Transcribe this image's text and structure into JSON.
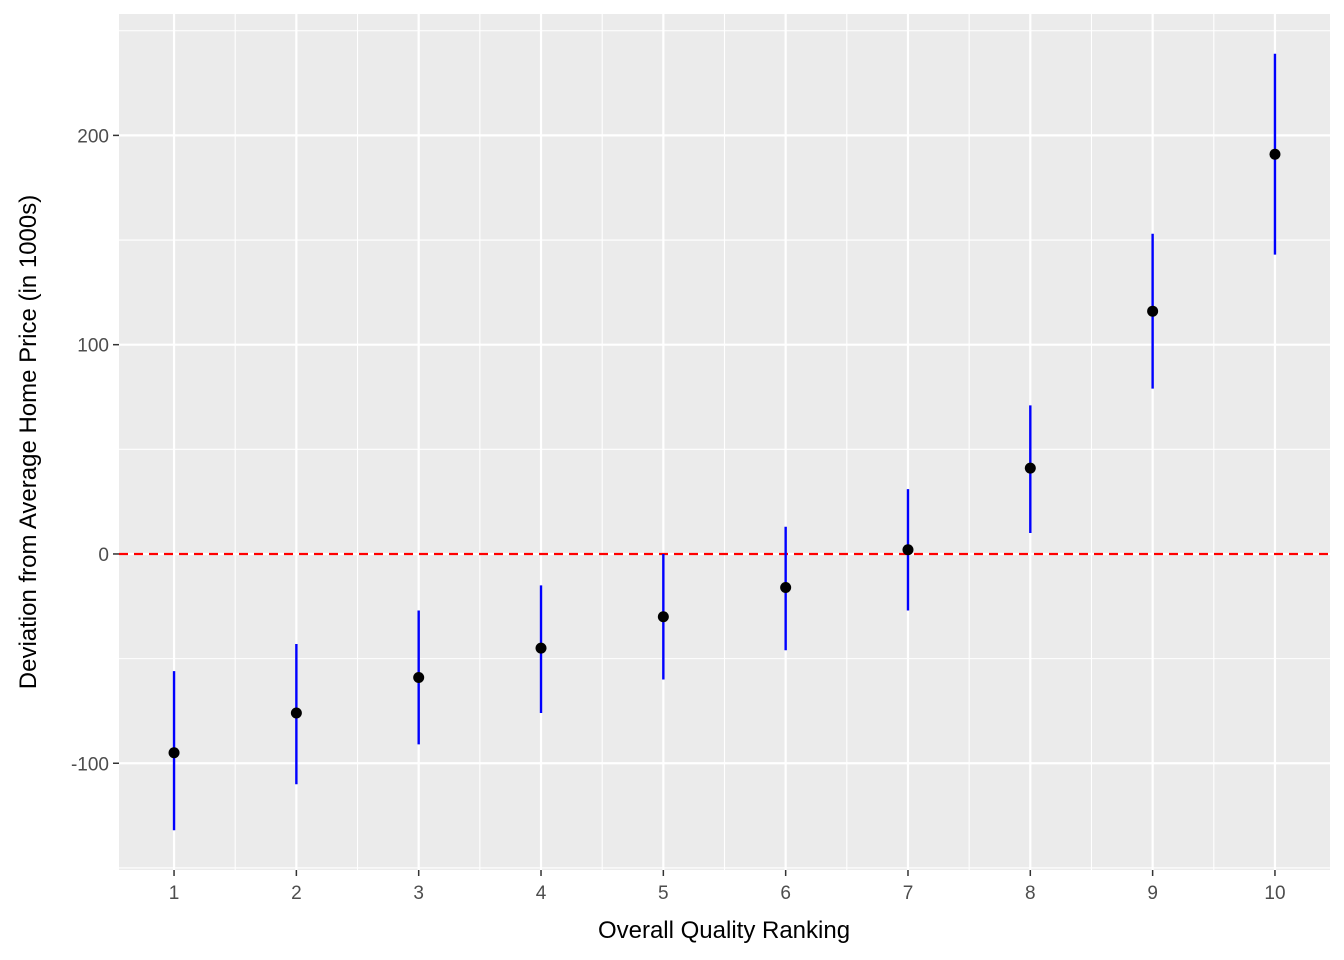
{
  "chart_data": {
    "type": "scatter",
    "xlabel": "Overall Quality Ranking",
    "ylabel": "Deviation from Average Home Price (in 1000s)",
    "x": [
      1,
      2,
      3,
      4,
      5,
      6,
      7,
      8,
      9,
      10
    ],
    "y": [
      -95,
      -76,
      -59,
      -45,
      -30,
      -16,
      2,
      41,
      116,
      191
    ],
    "y_lower": [
      -132,
      -110,
      -91,
      -76,
      -60,
      -46,
      -27,
      10,
      79,
      143
    ],
    "y_upper": [
      -56,
      -43,
      -27,
      -15,
      0,
      13,
      31,
      71,
      153,
      239
    ],
    "xlim": [
      0.55,
      10.45
    ],
    "ylim": [
      -151,
      258
    ],
    "x_ticks": [
      1,
      2,
      3,
      4,
      5,
      6,
      7,
      8,
      9,
      10
    ],
    "x_tick_labels": [
      "1",
      "2",
      "3",
      "4",
      "5",
      "6",
      "7",
      "8",
      "9",
      "10"
    ],
    "y_ticks": [
      -100,
      0,
      100,
      200
    ],
    "y_tick_labels": [
      "-100",
      "0",
      "100",
      "200"
    ],
    "reference_line": {
      "y": 0,
      "style": "dashed",
      "color": "#ff0000"
    },
    "grid": true,
    "colors": {
      "panel_background": "#ebebeb",
      "grid": "#ffffff",
      "points": "#000000",
      "error_bars": "#0000ff",
      "reference_line": "#ff0000"
    }
  }
}
